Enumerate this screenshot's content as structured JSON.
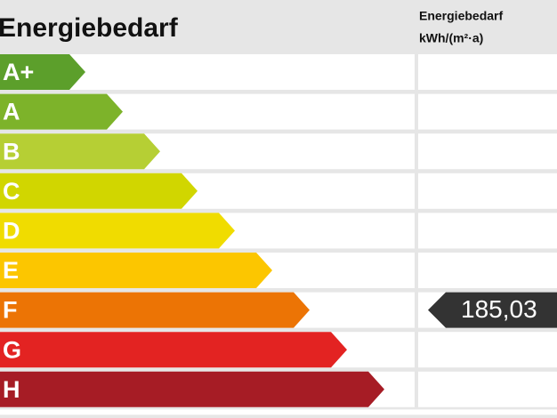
{
  "header": {
    "title": "Energiebedarf",
    "column_title": "Energiebedarf",
    "unit": "kWh/(m²·a)"
  },
  "rows": [
    {
      "label": "A+",
      "color": "#5c9f2b"
    },
    {
      "label": "A",
      "color": "#7db32a"
    },
    {
      "label": "B",
      "color": "#b6cf34"
    },
    {
      "label": "C",
      "color": "#d1d600"
    },
    {
      "label": "D",
      "color": "#f0dc00"
    },
    {
      "label": "E",
      "color": "#fcc600"
    },
    {
      "label": "F",
      "color": "#ec7405",
      "value": "185,03"
    },
    {
      "label": "G",
      "color": "#e32322"
    },
    {
      "label": "H",
      "color": "#a61c25"
    }
  ]
}
